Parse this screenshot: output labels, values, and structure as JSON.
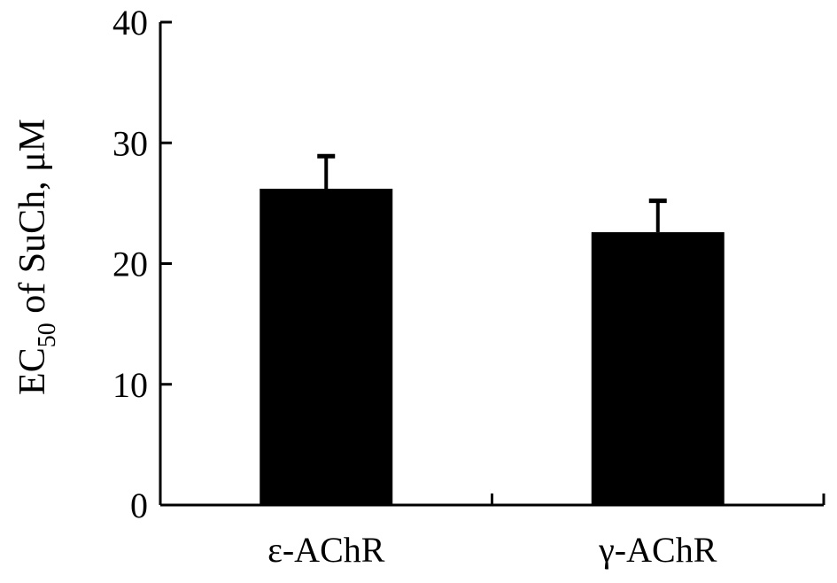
{
  "chart_data": {
    "type": "bar",
    "categories": [
      "ε-AChR",
      "γ-AChR"
    ],
    "values": [
      26.2,
      22.6
    ],
    "error_bars": [
      2.7,
      2.6
    ],
    "title": "",
    "xlabel": "",
    "ylabel": {
      "prefix": "EC",
      "subscript": "50",
      "suffix": " of SuCh, μM"
    },
    "ylim": [
      0,
      40
    ],
    "yticks": [
      0,
      10,
      20,
      30,
      40
    ],
    "grid": false,
    "legend": "none",
    "bar_color": "#000000"
  }
}
